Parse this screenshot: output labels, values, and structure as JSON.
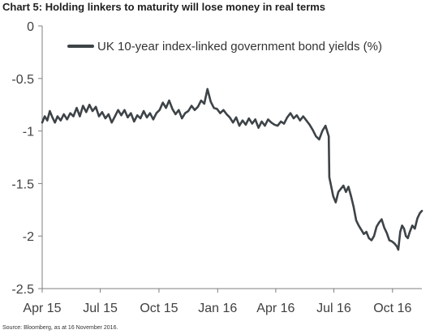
{
  "chart_data": {
    "type": "line",
    "title": "Chart 5: Holding linkers to maturity will lose money in real terms",
    "source": "Source: Bloomberg, as at 16 November 2016.",
    "xlabel": "",
    "ylabel": "",
    "ylim": [
      -2.5,
      0
    ],
    "yticks": [
      0,
      -0.5,
      -1,
      -1.5,
      -2,
      -2.5
    ],
    "ytick_labels": [
      "0",
      "-0.5",
      "-1",
      "-1.5",
      "-2",
      "-2.5"
    ],
    "x_range": [
      "2015-04-01",
      "2016-11-16"
    ],
    "xticks": [
      {
        "label": "Apr 15",
        "date": "2015-04-01"
      },
      {
        "label": "Jul 15",
        "date": "2015-07-01"
      },
      {
        "label": "Oct 15",
        "date": "2015-10-01"
      },
      {
        "label": "Jan 16",
        "date": "2016-01-01"
      },
      {
        "label": "Apr 16",
        "date": "2016-04-01"
      },
      {
        "label": "Jul 16",
        "date": "2016-07-01"
      },
      {
        "label": "Oct 16",
        "date": "2016-10-01"
      }
    ],
    "grid": false,
    "legend": "top-right",
    "line_color": "#3d4347",
    "series": [
      {
        "name": "UK 10-year index-linked government bond yields (%)",
        "points": [
          [
            "2015-04-01",
            -0.92
          ],
          [
            "2015-04-05",
            -0.86
          ],
          [
            "2015-04-09",
            -0.9
          ],
          [
            "2015-04-13",
            -0.81
          ],
          [
            "2015-04-17",
            -0.87
          ],
          [
            "2015-04-21",
            -0.92
          ],
          [
            "2015-04-25",
            -0.86
          ],
          [
            "2015-04-30",
            -0.9
          ],
          [
            "2015-05-05",
            -0.84
          ],
          [
            "2015-05-10",
            -0.89
          ],
          [
            "2015-05-15",
            -0.83
          ],
          [
            "2015-05-20",
            -0.86
          ],
          [
            "2015-05-25",
            -0.78
          ],
          [
            "2015-05-30",
            -0.86
          ],
          [
            "2015-06-04",
            -0.76
          ],
          [
            "2015-06-09",
            -0.82
          ],
          [
            "2015-06-14",
            -0.75
          ],
          [
            "2015-06-19",
            -0.81
          ],
          [
            "2015-06-24",
            -0.77
          ],
          [
            "2015-06-29",
            -0.86
          ],
          [
            "2015-07-04",
            -0.82
          ],
          [
            "2015-07-09",
            -0.88
          ],
          [
            "2015-07-14",
            -0.84
          ],
          [
            "2015-07-19",
            -0.92
          ],
          [
            "2015-07-24",
            -0.86
          ],
          [
            "2015-07-29",
            -0.8
          ],
          [
            "2015-08-03",
            -0.85
          ],
          [
            "2015-08-08",
            -0.8
          ],
          [
            "2015-08-13",
            -0.87
          ],
          [
            "2015-08-18",
            -0.83
          ],
          [
            "2015-08-23",
            -0.91
          ],
          [
            "2015-08-28",
            -0.85
          ],
          [
            "2015-09-02",
            -0.88
          ],
          [
            "2015-09-07",
            -0.81
          ],
          [
            "2015-09-12",
            -0.87
          ],
          [
            "2015-09-17",
            -0.83
          ],
          [
            "2015-09-22",
            -0.89
          ],
          [
            "2015-09-27",
            -0.83
          ],
          [
            "2015-10-02",
            -0.8
          ],
          [
            "2015-10-07",
            -0.73
          ],
          [
            "2015-10-12",
            -0.78
          ],
          [
            "2015-10-17",
            -0.71
          ],
          [
            "2015-10-22",
            -0.79
          ],
          [
            "2015-10-27",
            -0.84
          ],
          [
            "2015-11-01",
            -0.8
          ],
          [
            "2015-11-06",
            -0.88
          ],
          [
            "2015-11-11",
            -0.83
          ],
          [
            "2015-11-16",
            -0.81
          ],
          [
            "2015-11-21",
            -0.76
          ],
          [
            "2015-11-26",
            -0.8
          ],
          [
            "2015-12-01",
            -0.77
          ],
          [
            "2015-12-06",
            -0.71
          ],
          [
            "2015-12-11",
            -0.74
          ],
          [
            "2015-12-16",
            -0.6
          ],
          [
            "2015-12-21",
            -0.72
          ],
          [
            "2015-12-26",
            -0.78
          ],
          [
            "2015-12-31",
            -0.79
          ],
          [
            "2016-01-05",
            -0.83
          ],
          [
            "2016-01-10",
            -0.8
          ],
          [
            "2016-01-15",
            -0.84
          ],
          [
            "2016-01-20",
            -0.87
          ],
          [
            "2016-01-25",
            -0.92
          ],
          [
            "2016-01-30",
            -0.87
          ],
          [
            "2016-02-04",
            -0.95
          ],
          [
            "2016-02-09",
            -0.9
          ],
          [
            "2016-02-14",
            -0.94
          ],
          [
            "2016-02-19",
            -0.88
          ],
          [
            "2016-02-24",
            -0.93
          ],
          [
            "2016-02-29",
            -0.89
          ],
          [
            "2016-03-05",
            -0.97
          ],
          [
            "2016-03-10",
            -0.91
          ],
          [
            "2016-03-15",
            -0.95
          ],
          [
            "2016-03-20",
            -0.89
          ],
          [
            "2016-03-25",
            -0.92
          ],
          [
            "2016-03-30",
            -0.94
          ],
          [
            "2016-04-04",
            -0.95
          ],
          [
            "2016-04-09",
            -0.91
          ],
          [
            "2016-04-14",
            -0.93
          ],
          [
            "2016-04-19",
            -0.87
          ],
          [
            "2016-04-24",
            -0.83
          ],
          [
            "2016-04-29",
            -0.88
          ],
          [
            "2016-05-04",
            -0.85
          ],
          [
            "2016-05-09",
            -0.9
          ],
          [
            "2016-05-14",
            -0.86
          ],
          [
            "2016-05-19",
            -0.9
          ],
          [
            "2016-05-24",
            -0.94
          ],
          [
            "2016-05-29",
            -0.99
          ],
          [
            "2016-06-03",
            -1.05
          ],
          [
            "2016-06-08",
            -1.08
          ],
          [
            "2016-06-13",
            -1.0
          ],
          [
            "2016-06-18",
            -0.95
          ],
          [
            "2016-06-23",
            -1.05
          ],
          [
            "2016-06-24",
            -1.44
          ],
          [
            "2016-06-26",
            -1.5
          ],
          [
            "2016-06-30",
            -1.62
          ],
          [
            "2016-07-04",
            -1.68
          ],
          [
            "2016-07-08",
            -1.58
          ],
          [
            "2016-07-12",
            -1.55
          ],
          [
            "2016-07-16",
            -1.52
          ],
          [
            "2016-07-20",
            -1.58
          ],
          [
            "2016-07-24",
            -1.53
          ],
          [
            "2016-07-28",
            -1.62
          ],
          [
            "2016-08-01",
            -1.72
          ],
          [
            "2016-08-05",
            -1.85
          ],
          [
            "2016-08-09",
            -1.9
          ],
          [
            "2016-08-13",
            -1.94
          ],
          [
            "2016-08-17",
            -1.98
          ],
          [
            "2016-08-21",
            -1.96
          ],
          [
            "2016-08-25",
            -2.02
          ],
          [
            "2016-08-29",
            -2.04
          ],
          [
            "2016-09-02",
            -2.0
          ],
          [
            "2016-09-06",
            -1.91
          ],
          [
            "2016-09-10",
            -1.87
          ],
          [
            "2016-09-14",
            -1.84
          ],
          [
            "2016-09-18",
            -1.92
          ],
          [
            "2016-09-22",
            -1.97
          ],
          [
            "2016-09-26",
            -2.04
          ],
          [
            "2016-09-30",
            -2.05
          ],
          [
            "2016-10-04",
            -2.07
          ],
          [
            "2016-10-08",
            -2.1
          ],
          [
            "2016-10-10",
            -2.13
          ],
          [
            "2016-10-13",
            -1.96
          ],
          [
            "2016-10-16",
            -1.9
          ],
          [
            "2016-10-19",
            -1.93
          ],
          [
            "2016-10-22",
            -2.0
          ],
          [
            "2016-10-25",
            -2.02
          ],
          [
            "2016-10-28",
            -1.96
          ],
          [
            "2016-11-01",
            -1.9
          ],
          [
            "2016-11-05",
            -1.93
          ],
          [
            "2016-11-09",
            -1.83
          ],
          [
            "2016-11-13",
            -1.78
          ],
          [
            "2016-11-16",
            -1.76
          ]
        ]
      }
    ]
  }
}
